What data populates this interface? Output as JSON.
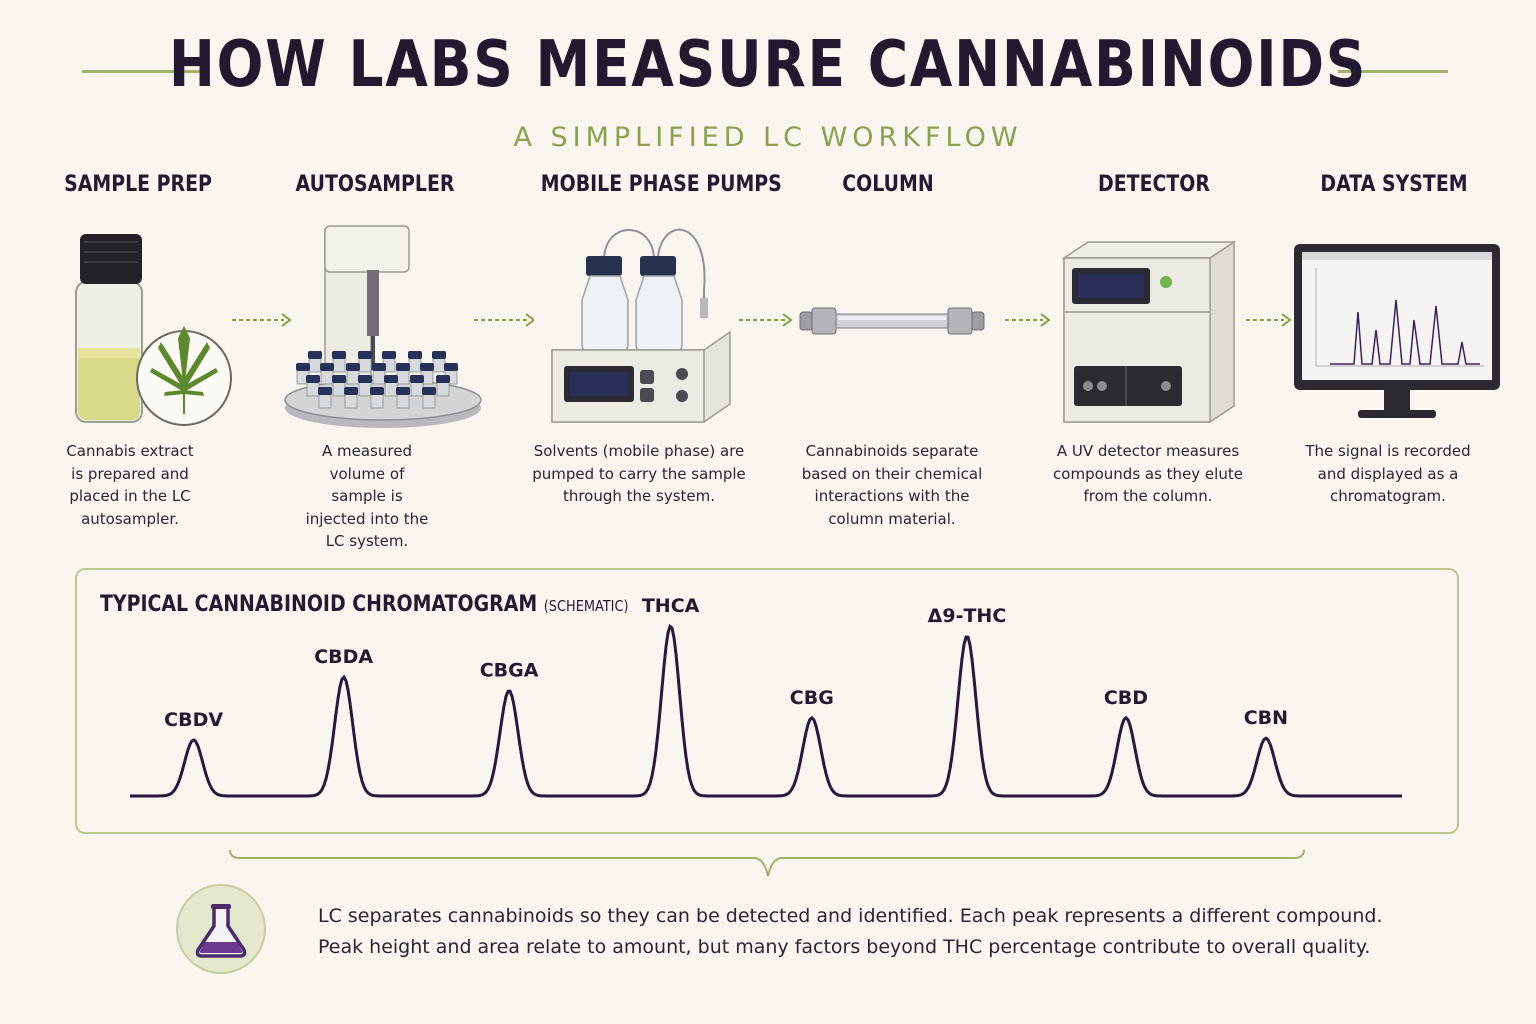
{
  "title": "HOW LABS MEASURE CANNABINOIDS",
  "subtitle": "A SIMPLIFIED LC WORKFLOW",
  "steps": [
    {
      "title": "SAMPLE PREP",
      "description": "Cannabis extract is prepared and placed in the LC autosampler.",
      "icon": "vial-with-leaf-icon"
    },
    {
      "title": "AUTOSAMPLER",
      "description": "A measured volume of sample is injected into the LC system.",
      "icon": "autosampler-icon"
    },
    {
      "title": "MOBILE PHASE PUMPS",
      "description": "Solvents (mobile phase) are pumped to carry the sample through the system.",
      "icon": "pump-icon"
    },
    {
      "title": "COLUMN",
      "description": "Cannabinoids separate based on their chemical interactions with the column material.",
      "icon": "column-icon"
    },
    {
      "title": "DETECTOR",
      "description": "A UV detector measures compounds as they elute from the column.",
      "icon": "detector-icon"
    },
    {
      "title": "DATA SYSTEM",
      "description": "The signal is recorded and displayed as a chromatogram.",
      "icon": "monitor-icon"
    }
  ],
  "chromatogram": {
    "title": "TYPICAL CANNABINOID CHROMATOGRAM",
    "note": "(SCHEMATIC)"
  },
  "chart_data": {
    "type": "line",
    "title": "TYPICAL CANNABINOID CHROMATOGRAM (SCHEMATIC)",
    "xlabel": "",
    "ylabel": "",
    "peaks": [
      {
        "name": "CBDV",
        "position": 0.05,
        "height": 0.33
      },
      {
        "name": "CBDA",
        "position": 0.168,
        "height": 0.7
      },
      {
        "name": "CBGA",
        "position": 0.298,
        "height": 0.62
      },
      {
        "name": "THCA",
        "position": 0.425,
        "height": 1.0
      },
      {
        "name": "CBG",
        "position": 0.536,
        "height": 0.46
      },
      {
        "name": "Δ9-THC",
        "position": 0.658,
        "height": 0.94
      },
      {
        "name": "CBD",
        "position": 0.783,
        "height": 0.46
      },
      {
        "name": "CBN",
        "position": 0.893,
        "height": 0.34
      }
    ]
  },
  "footer": {
    "line1": "LC separates cannabinoids so they can be detected and identified. Each peak represents a different compound.",
    "line2": "Peak height and area relate to amount, but many factors beyond THC percentage contribute to overall quality.",
    "icon": "flask-icon"
  },
  "colors": {
    "accent": "#88a24e",
    "ink": "#201930",
    "trace": "#2a1740"
  }
}
